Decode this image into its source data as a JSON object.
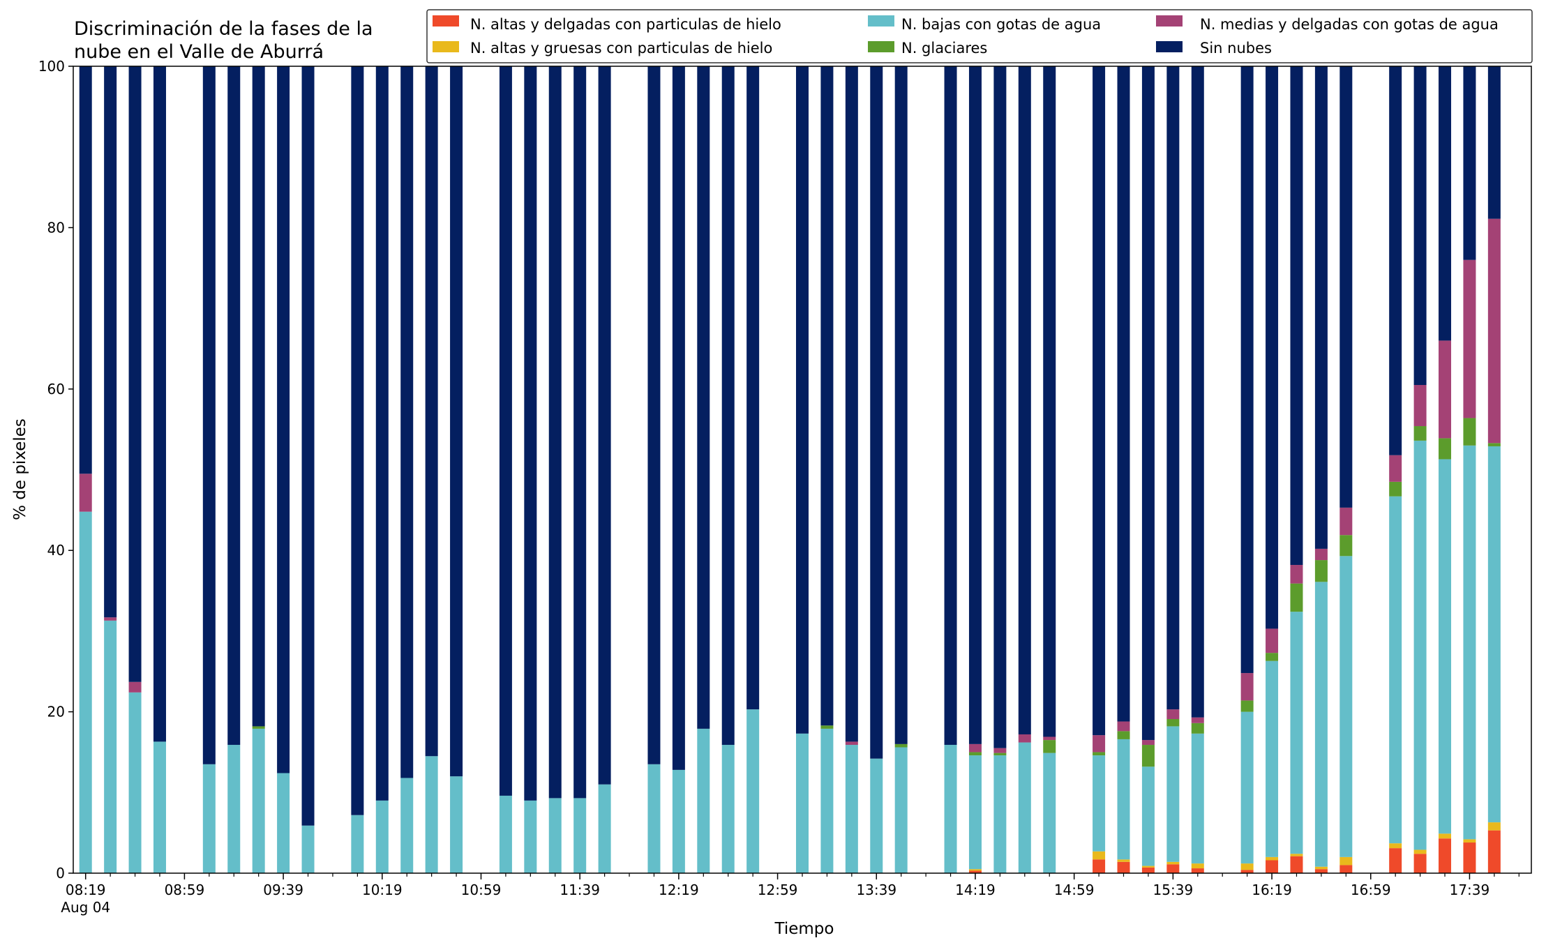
{
  "chart_data": {
    "type": "bar",
    "stacked": true,
    "title_lines": [
      "Discriminación de la fases de la",
      "nube en el Valle de Aburrá"
    ],
    "xlabel": "Tiempo",
    "ylabel": "% de pixeles",
    "ylim": [
      0,
      100
    ],
    "yticks": [
      "0",
      "20",
      "40",
      "60",
      "80",
      "100"
    ],
    "x_unit": "minutes since 08:19",
    "xlim": [
      -5,
      585
    ],
    "xticks": [
      {
        "at": 0,
        "label": "08:19",
        "sub": "Aug 04"
      },
      {
        "at": 40,
        "label": "08:59"
      },
      {
        "at": 80,
        "label": "09:39"
      },
      {
        "at": 120,
        "label": "10:19"
      },
      {
        "at": 160,
        "label": "10:59"
      },
      {
        "at": 200,
        "label": "11:39"
      },
      {
        "at": 240,
        "label": "12:19"
      },
      {
        "at": 280,
        "label": "12:59"
      },
      {
        "at": 320,
        "label": "13:39"
      },
      {
        "at": 360,
        "label": "14:19"
      },
      {
        "at": 400,
        "label": "14:59"
      },
      {
        "at": 440,
        "label": "15:39"
      },
      {
        "at": 480,
        "label": "16:19"
      },
      {
        "at": 520,
        "label": "16:59"
      },
      {
        "at": 560,
        "label": "17:39"
      }
    ],
    "minor_ticks_every": 10,
    "legend_position": "top-right",
    "series": [
      {
        "key": "altas_delgadas",
        "name": "N. altas y delgadas con particulas de hielo",
        "color": "#ef4a2a"
      },
      {
        "key": "altas_gruesas",
        "name": "N. altas y gruesas con particulas de hielo",
        "color": "#e9b91c"
      },
      {
        "key": "bajas",
        "name": "N. bajas con gotas de agua",
        "color": "#64bec9"
      },
      {
        "key": "glaciares",
        "name": "N. glaciares",
        "color": "#5c9c2c"
      },
      {
        "key": "medias",
        "name": "N. medias y delgadas con gotas de agua",
        "color": "#a44275"
      },
      {
        "key": "sin_nubes",
        "name": "Sin nubes",
        "color": "#041f60"
      }
    ],
    "bars": [
      {
        "t": 0,
        "v": [
          0,
          0,
          44.8,
          0,
          4.7,
          50.5
        ]
      },
      {
        "t": 10,
        "v": [
          0,
          0,
          31.3,
          0,
          0.4,
          68.3
        ]
      },
      {
        "t": 20,
        "v": [
          0,
          0,
          22.4,
          0,
          1.3,
          76.3
        ]
      },
      {
        "t": 30,
        "v": [
          0,
          0,
          16.3,
          0,
          0,
          83.7
        ]
      },
      {
        "t": 50,
        "v": [
          0,
          0,
          13.5,
          0,
          0,
          86.5
        ]
      },
      {
        "t": 60,
        "v": [
          0,
          0,
          15.9,
          0,
          0,
          84.1
        ]
      },
      {
        "t": 70,
        "v": [
          0,
          0,
          17.9,
          0.3,
          0,
          81.8
        ]
      },
      {
        "t": 80,
        "v": [
          0,
          0,
          12.4,
          0,
          0,
          87.6
        ]
      },
      {
        "t": 90,
        "v": [
          0,
          0,
          5.9,
          0,
          0,
          94.1
        ]
      },
      {
        "t": 110,
        "v": [
          0,
          0,
          7.2,
          0,
          0,
          92.8
        ]
      },
      {
        "t": 120,
        "v": [
          0,
          0,
          9.0,
          0,
          0,
          91.0
        ]
      },
      {
        "t": 130,
        "v": [
          0,
          0,
          11.8,
          0,
          0,
          88.2
        ]
      },
      {
        "t": 140,
        "v": [
          0,
          0,
          14.5,
          0,
          0,
          85.5
        ]
      },
      {
        "t": 150,
        "v": [
          0,
          0,
          12.0,
          0,
          0,
          88.0
        ]
      },
      {
        "t": 170,
        "v": [
          0,
          0,
          9.6,
          0,
          0,
          90.4
        ]
      },
      {
        "t": 180,
        "v": [
          0,
          0,
          9.0,
          0,
          0,
          91.0
        ]
      },
      {
        "t": 190,
        "v": [
          0,
          0,
          9.3,
          0,
          0,
          90.7
        ]
      },
      {
        "t": 200,
        "v": [
          0,
          0,
          9.3,
          0,
          0,
          90.7
        ]
      },
      {
        "t": 210,
        "v": [
          0,
          0,
          11.0,
          0,
          0,
          89.0
        ]
      },
      {
        "t": 230,
        "v": [
          0,
          0,
          13.5,
          0,
          0,
          86.5
        ]
      },
      {
        "t": 240,
        "v": [
          0,
          0,
          12.8,
          0,
          0,
          87.2
        ]
      },
      {
        "t": 250,
        "v": [
          0,
          0,
          17.9,
          0,
          0,
          82.1
        ]
      },
      {
        "t": 260,
        "v": [
          0,
          0,
          15.9,
          0,
          0,
          84.1
        ]
      },
      {
        "t": 270,
        "v": [
          0,
          0,
          20.3,
          0,
          0,
          79.7
        ]
      },
      {
        "t": 290,
        "v": [
          0,
          0,
          17.3,
          0,
          0,
          82.7
        ]
      },
      {
        "t": 300,
        "v": [
          0,
          0,
          17.9,
          0.4,
          0,
          81.7
        ]
      },
      {
        "t": 310,
        "v": [
          0,
          0,
          15.9,
          0,
          0.4,
          83.7
        ]
      },
      {
        "t": 320,
        "v": [
          0,
          0,
          14.2,
          0,
          0,
          85.8
        ]
      },
      {
        "t": 330,
        "v": [
          0,
          0,
          15.6,
          0.4,
          0,
          84.0
        ]
      },
      {
        "t": 350,
        "v": [
          0,
          0,
          15.9,
          0,
          0,
          84.1
        ]
      },
      {
        "t": 360,
        "v": [
          0.3,
          0.2,
          14.1,
          0.4,
          1.0,
          84.0
        ]
      },
      {
        "t": 370,
        "v": [
          0,
          0,
          14.6,
          0.3,
          0.6,
          84.5
        ]
      },
      {
        "t": 380,
        "v": [
          0,
          0,
          16.2,
          0,
          1.0,
          82.8
        ]
      },
      {
        "t": 390,
        "v": [
          0,
          0,
          14.9,
          1.6,
          0.4,
          83.1
        ]
      },
      {
        "t": 410,
        "v": [
          1.7,
          1.0,
          11.9,
          0.4,
          2.1,
          82.9
        ]
      },
      {
        "t": 420,
        "v": [
          1.4,
          0.3,
          14.9,
          1.0,
          1.2,
          81.2
        ]
      },
      {
        "t": 430,
        "v": [
          0.7,
          0.2,
          12.3,
          2.7,
          0.6,
          83.5
        ]
      },
      {
        "t": 440,
        "v": [
          1.1,
          0.3,
          16.8,
          0.9,
          1.2,
          79.7
        ]
      },
      {
        "t": 450,
        "v": [
          0.6,
          0.6,
          16.1,
          1.3,
          0.7,
          80.7
        ]
      },
      {
        "t": 470,
        "v": [
          0.4,
          0.8,
          18.8,
          1.4,
          3.4,
          75.2
        ]
      },
      {
        "t": 480,
        "v": [
          1.6,
          0.4,
          24.3,
          1.0,
          3.0,
          69.7
        ]
      },
      {
        "t": 490,
        "v": [
          2.1,
          0.3,
          30.0,
          3.5,
          2.3,
          61.8
        ]
      },
      {
        "t": 500,
        "v": [
          0.5,
          0.3,
          35.3,
          2.7,
          1.4,
          59.8
        ]
      },
      {
        "t": 510,
        "v": [
          1.0,
          1.0,
          37.3,
          2.6,
          3.4,
          54.7
        ]
      },
      {
        "t": 530,
        "v": [
          3.1,
          0.6,
          43.0,
          1.8,
          3.3,
          48.2
        ]
      },
      {
        "t": 540,
        "v": [
          2.4,
          0.5,
          50.7,
          1.8,
          5.1,
          39.5
        ]
      },
      {
        "t": 550,
        "v": [
          4.3,
          0.6,
          46.4,
          2.6,
          12.1,
          34.0
        ]
      },
      {
        "t": 560,
        "v": [
          3.8,
          0.4,
          48.8,
          3.4,
          19.6,
          24.0
        ]
      },
      {
        "t": 570,
        "v": [
          5.3,
          1.0,
          46.6,
          0.4,
          27.8,
          18.9
        ]
      }
    ]
  }
}
